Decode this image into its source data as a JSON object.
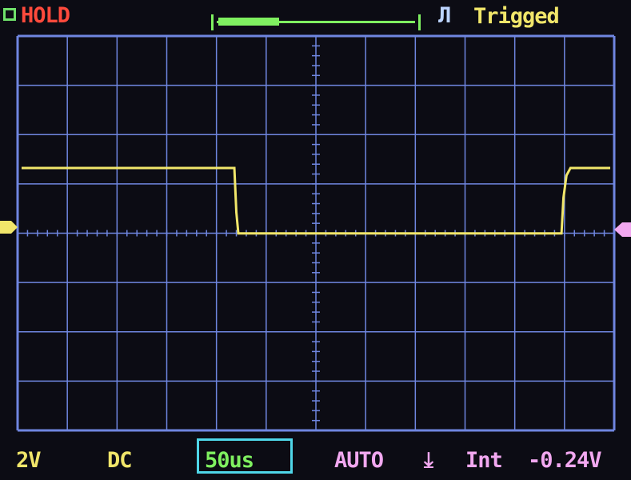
{
  "header": {
    "hold_label": "HOLD",
    "trigger_edge_icon": "rising-pulse-icon",
    "trigger_edge_glyph": "Л",
    "trigger_status": "Trigged",
    "memory_position_fraction": 0.3
  },
  "footer": {
    "volts_per_div": "2V",
    "coupling": "DC",
    "timebase": "50us",
    "trigger_mode": "AUTO",
    "trigger_edge_glyph": "⤓",
    "trigger_source": "Int",
    "trigger_level": "-0.24V"
  },
  "colors": {
    "grid": "#6f86e0",
    "trace": "#f1e66a",
    "hold": "#ff4a3c",
    "timebase_box": "#4fd6e8"
  },
  "chart_data": {
    "type": "line",
    "grid": {
      "x_divisions": 12,
      "y_divisions": 8
    },
    "x_unit": "us",
    "y_unit": "V",
    "series": [
      {
        "points": [
          [
            -296,
            2.4
          ],
          [
            -82,
            2.4
          ],
          [
            -80,
            0.6
          ],
          [
            -78,
            -0.25
          ],
          [
            247,
            -0.25
          ],
          [
            249,
            1.2
          ],
          [
            252,
            2.1
          ],
          [
            256,
            2.4
          ],
          [
            296,
            2.4
          ]
        ]
      }
    ]
  }
}
